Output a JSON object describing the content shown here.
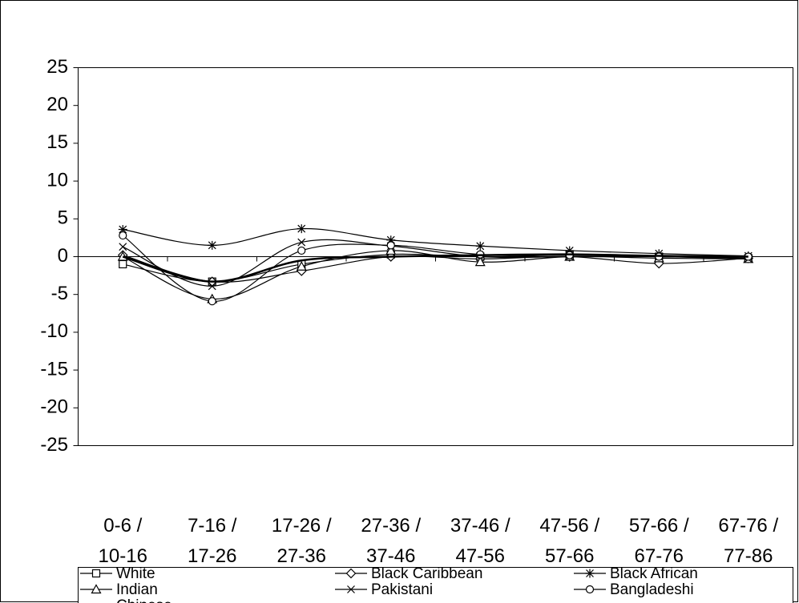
{
  "chart_data": {
    "type": "line",
    "categories": [
      "0-6 /\n10-16",
      "7-16 /\n17-26",
      "17-26 /\n27-36",
      "27-36 /\n37-46",
      "37-46 /\n47-56",
      "47-56 /\n57-66",
      "57-66 /\n67-76",
      "67-76 /\n77-86"
    ],
    "series": [
      {
        "name": "White",
        "color": "#000000",
        "marker": "square",
        "values": [
          -1,
          -3.3,
          -1,
          0.3,
          0,
          0.2,
          0,
          -0.2
        ]
      },
      {
        "name": "Black Caribbean",
        "color": "#000000",
        "marker": "diamond",
        "values": [
          0.2,
          -3.3,
          -1.9,
          0,
          -0.3,
          0,
          -0.9,
          -0.2
        ]
      },
      {
        "name": "Black African",
        "color": "#000000",
        "marker": "asterisk",
        "values": [
          3.6,
          1.5,
          3.7,
          2.2,
          1.4,
          0.8,
          0.4,
          0.1
        ]
      },
      {
        "name": "Indian",
        "color": "#000000",
        "marker": "triangle",
        "values": [
          0,
          -5.6,
          -1.3,
          0.8,
          -0.7,
          0,
          -0.2,
          -0.3
        ]
      },
      {
        "name": "Pakistani",
        "color": "#000000",
        "marker": "x",
        "values": [
          1.3,
          -3.9,
          1.9,
          1.4,
          0,
          0,
          0,
          -0.3
        ]
      },
      {
        "name": "Bangladeshi",
        "color": "#000000",
        "marker": "circle",
        "values": [
          2.8,
          -5.9,
          0.8,
          1.5,
          0.3,
          0.2,
          0,
          0
        ]
      },
      {
        "name": "Chinese",
        "color": "#000000",
        "marker": "none",
        "values": [
          0,
          -3.3,
          -0.5,
          0,
          0.2,
          0.3,
          0.1,
          0
        ]
      }
    ],
    "ylim": [
      -25,
      25
    ],
    "yticks": [
      -25,
      -20,
      -15,
      -10,
      -5,
      0,
      5,
      10,
      15,
      20,
      25
    ],
    "smooth": true
  }
}
